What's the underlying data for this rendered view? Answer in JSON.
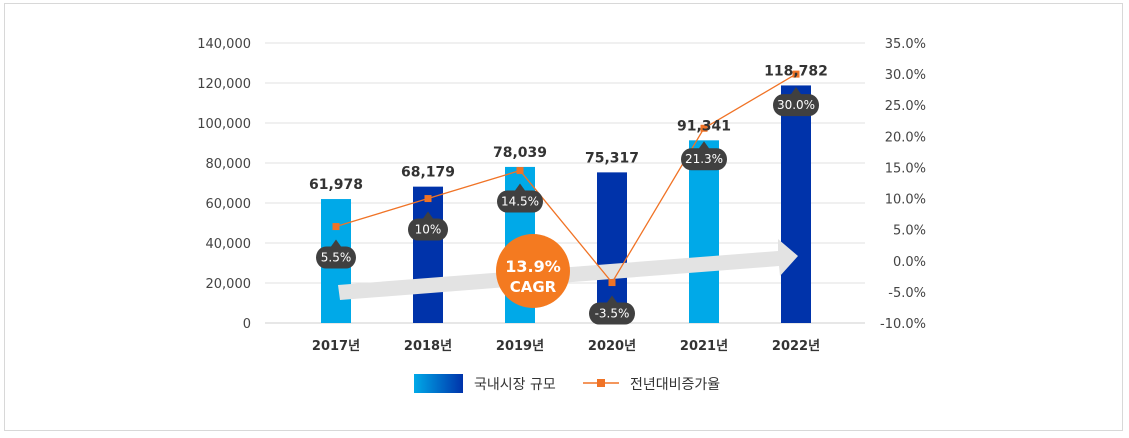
{
  "chart_data": {
    "type": "bar",
    "categories": [
      "2017년",
      "2018년",
      "2019년",
      "2020년",
      "2021년",
      "2022년"
    ],
    "series": [
      {
        "name": "국내시장 규모",
        "type": "bar",
        "axis": "left",
        "values": [
          61978,
          68179,
          78039,
          75317,
          91341,
          118782
        ],
        "labels": [
          "61,978",
          "68,179",
          "78,039",
          "75,317",
          "91,341",
          "118,782"
        ]
      },
      {
        "name": "전년대비증가율",
        "type": "line",
        "axis": "right",
        "values": [
          5.5,
          10,
          14.5,
          -3.5,
          21.3,
          30.0
        ],
        "labels": [
          "5.5%",
          "10%",
          "14.5%",
          "-3.5%",
          "21.3%",
          "30.0%"
        ]
      }
    ],
    "left_axis": {
      "ylim": [
        0,
        140000
      ],
      "ticks": [
        "0",
        "20,000",
        "40,000",
        "60,000",
        "80,000",
        "100,000",
        "120,000",
        "140,000"
      ]
    },
    "right_axis": {
      "ylim": [
        -10,
        35
      ],
      "ticks": [
        "-10.0%",
        "-5.0%",
        "0.0%",
        "5.0%",
        "10.0%",
        "15.0%",
        "20.0%",
        "25.0%",
        "30.0%",
        "35.0%"
      ]
    },
    "grid": true,
    "legend_placement": "bottom",
    "annotation": {
      "line1": "13.9%",
      "line2": "CAGR"
    },
    "colors": {
      "bar_light": "#00a9e8",
      "bar_dark": "#0033aa",
      "line": "#f07326",
      "cagr": "#f47a20",
      "callout": "#404040",
      "arrow": "#e3e3e3"
    }
  }
}
